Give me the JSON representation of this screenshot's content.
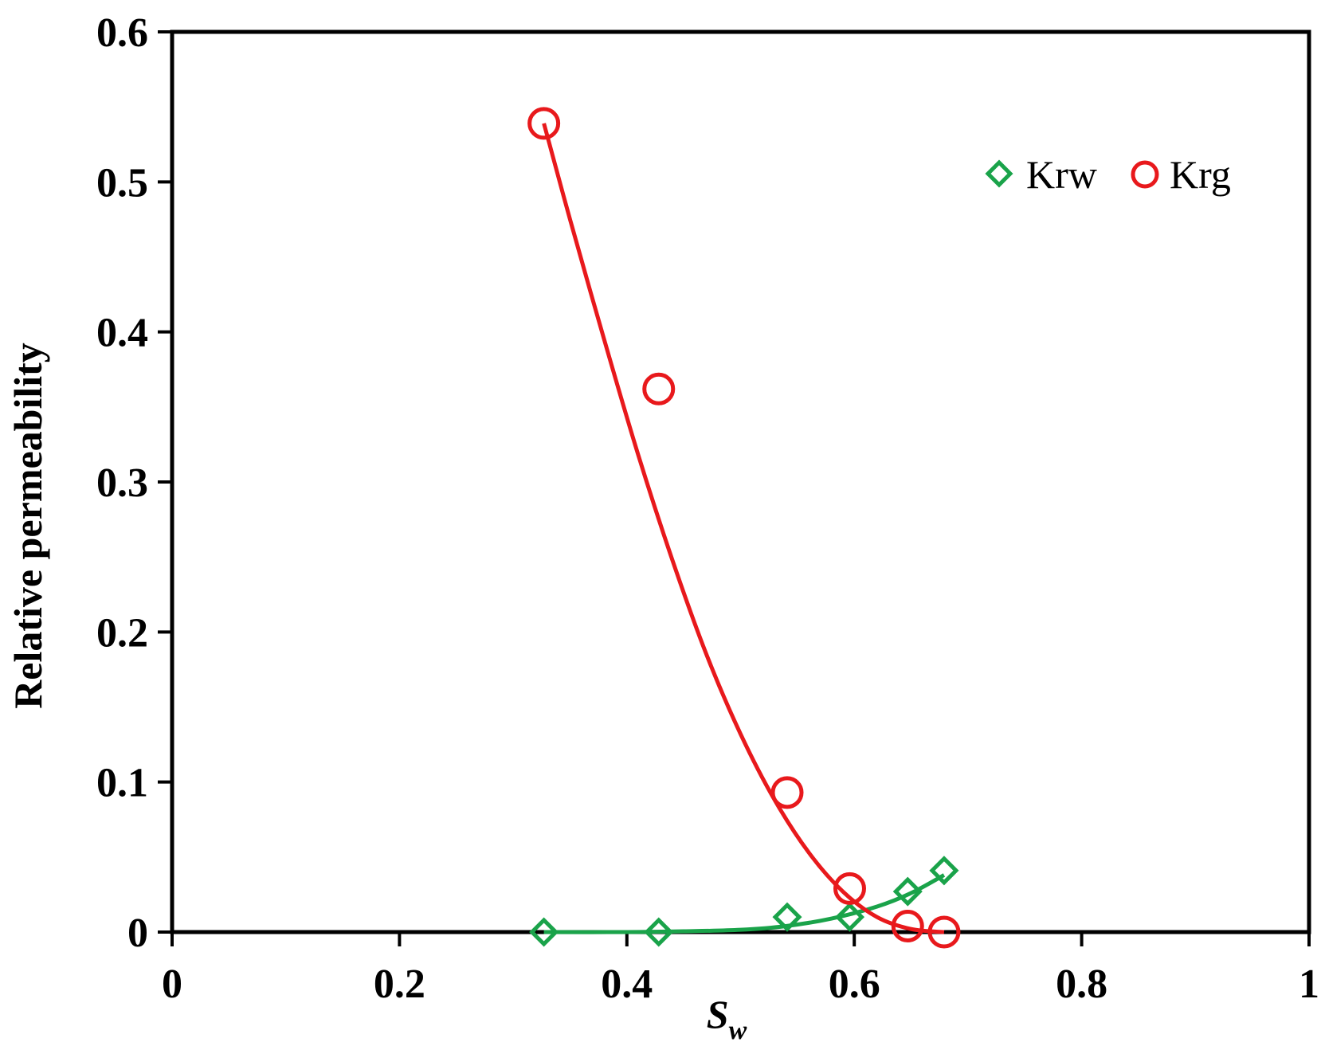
{
  "chart_data": {
    "type": "scatter",
    "title": "",
    "xlabel": {
      "main": "S",
      "subscript": "w"
    },
    "ylabel": "Relative permeability",
    "xlim": [
      0,
      1
    ],
    "ylim": [
      0,
      0.6
    ],
    "x_ticks": [
      "0",
      "0.2",
      "0.4",
      "0.6",
      "0.8",
      "1"
    ],
    "y_ticks": [
      "0",
      "0.1",
      "0.2",
      "0.3",
      "0.4",
      "0.5",
      "0.6"
    ],
    "x_tick_values": [
      0,
      0.2,
      0.4,
      0.6,
      0.8,
      1
    ],
    "y_tick_values": [
      0,
      0.1,
      0.2,
      0.3,
      0.4,
      0.5,
      0.6
    ],
    "grid": false,
    "legend_position": "top-right",
    "series": [
      {
        "name": "Krw",
        "marker": "diamond-icon",
        "color": "#1aa34a",
        "x": [
          0.327,
          0.428,
          0.541,
          0.596,
          0.647,
          0.679
        ],
        "y": [
          0.0,
          0.0,
          0.01,
          0.01,
          0.027,
          0.041
        ],
        "fit_x": [
          0.327,
          0.4,
          0.45,
          0.5,
          0.54,
          0.58,
          0.62,
          0.65,
          0.679
        ],
        "fit_y": [
          0.0,
          0.0,
          0.0005,
          0.0015,
          0.004,
          0.009,
          0.017,
          0.026,
          0.038
        ]
      },
      {
        "name": "Krg",
        "marker": "circle-icon",
        "color": "#e8191c",
        "x": [
          0.327,
          0.428,
          0.541,
          0.596,
          0.647,
          0.679
        ],
        "y": [
          0.539,
          0.362,
          0.093,
          0.029,
          0.004,
          0.0
        ],
        "fit_x": [
          0.327,
          0.35,
          0.38,
          0.41,
          0.44,
          0.47,
          0.5,
          0.53,
          0.56,
          0.59,
          0.62,
          0.65,
          0.679
        ],
        "fit_y": [
          0.539,
          0.475,
          0.395,
          0.318,
          0.248,
          0.185,
          0.132,
          0.088,
          0.053,
          0.027,
          0.01,
          0.002,
          0.0
        ]
      }
    ]
  }
}
